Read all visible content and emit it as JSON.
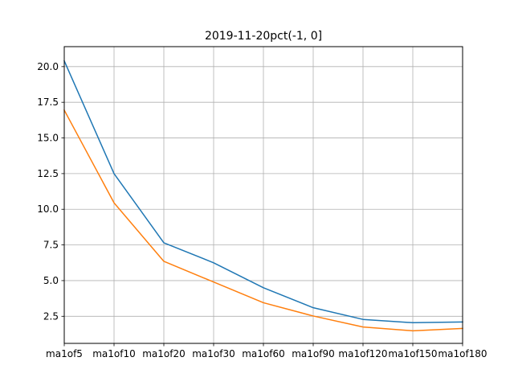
{
  "chart_data": {
    "type": "line",
    "title": "2019-11-20pct(-1, 0]",
    "xlabel": "",
    "ylabel": "",
    "categories": [
      "ma1of5",
      "ma1of10",
      "ma1of20",
      "ma1of30",
      "ma1of60",
      "ma1of90",
      "ma1of120",
      "ma1of150",
      "ma1of180"
    ],
    "yticks": [
      "2.5",
      "5.0",
      "7.5",
      "10.0",
      "12.5",
      "15.0",
      "17.5",
      "20.0"
    ],
    "ylim": [
      0.6,
      21.4
    ],
    "grid": true,
    "series": [
      {
        "color": "#1f77b4",
        "values": [
          20.4,
          12.5,
          7.65,
          6.25,
          4.5,
          3.1,
          2.28,
          2.05,
          2.1
        ]
      },
      {
        "color": "#ff7f0e",
        "values": [
          16.95,
          10.45,
          6.35,
          4.9,
          3.45,
          2.52,
          1.75,
          1.48,
          1.65
        ]
      }
    ]
  }
}
